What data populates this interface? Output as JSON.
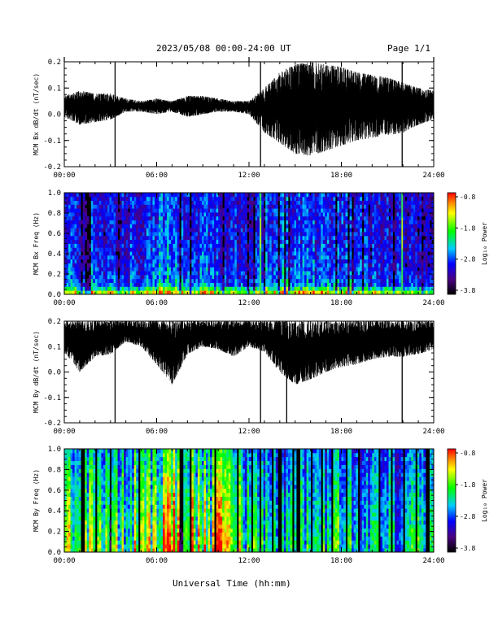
{
  "header": {
    "title": "2023/05/08  00:00-24:00 UT",
    "page": "Page 1/1"
  },
  "xaxis_title": "Universal Time (hh:mm)",
  "chart_data": [
    {
      "type": "line",
      "ylabel": "MCM Bx dB/dt (nT/sec)",
      "xlim": [
        0,
        24
      ],
      "ylim": [
        -0.2,
        0.2
      ],
      "xticks": [
        "00:00",
        "06:00",
        "12:00",
        "18:00",
        "24:00"
      ],
      "yticks": [
        "-0.2",
        "-0.1",
        "0.0",
        "0.1",
        "0.2"
      ],
      "spikes_hours": [
        3.3,
        12.75,
        21.95
      ],
      "envelope": {
        "hours": [
          0,
          1,
          2,
          3,
          4,
          5,
          6,
          7,
          8,
          9,
          10,
          11,
          12,
          13,
          14,
          15,
          16,
          17,
          18,
          19,
          20,
          21,
          22,
          23,
          24
        ],
        "upper": [
          0.07,
          0.09,
          0.08,
          0.08,
          0.06,
          0.05,
          0.06,
          0.05,
          0.07,
          0.07,
          0.06,
          0.05,
          0.05,
          0.1,
          0.16,
          0.19,
          0.2,
          0.19,
          0.18,
          0.16,
          0.15,
          0.14,
          0.12,
          0.1,
          0.09
        ],
        "lower": [
          -0.01,
          -0.04,
          -0.03,
          -0.02,
          0.01,
          0.01,
          0.0,
          0.01,
          -0.01,
          0.0,
          0.01,
          0.01,
          0.0,
          -0.07,
          -0.11,
          -0.15,
          -0.16,
          -0.14,
          -0.12,
          -0.1,
          -0.09,
          -0.08,
          -0.07,
          -0.04,
          -0.02
        ]
      }
    },
    {
      "type": "heatmap",
      "ylabel": "MCM Bx Freq (Hz)",
      "colorbar_label": "Log₁₀ Power",
      "xlim": [
        0,
        24
      ],
      "ylim": [
        0.0,
        1.0
      ],
      "xticks": [
        "00:00",
        "06:00",
        "12:00",
        "18:00",
        "24:00"
      ],
      "yticks": [
        "0.0",
        "0.2",
        "0.4",
        "0.6",
        "0.8",
        "1.0"
      ],
      "clim": [
        -3.8,
        -0.8
      ],
      "cticks": [
        "-0.8",
        "-1.8",
        "-2.8",
        "-3.8"
      ],
      "activity": [
        0.35,
        0.42,
        0.45,
        0.4,
        0.38,
        0.4,
        0.5,
        0.55,
        0.45,
        0.42,
        0.4,
        0.35,
        0.3,
        0.48,
        0.55,
        0.5,
        0.45,
        0.4,
        0.42,
        0.4,
        0.38,
        0.35,
        0.32,
        0.3,
        0.3
      ],
      "spikes_hours": [
        12.75,
        21.95
      ]
    },
    {
      "type": "line",
      "ylabel": "MCM By dB/dt (nT/sec)",
      "xlim": [
        0,
        24
      ],
      "ylim": [
        -0.2,
        0.2
      ],
      "xticks": [
        "00:00",
        "06:00",
        "12:00",
        "18:00",
        "24:00"
      ],
      "yticks": [
        "-0.2",
        "-0.1",
        "0.0",
        "0.1",
        "0.2"
      ],
      "spikes_hours": [
        3.3,
        12.75,
        14.45,
        21.95
      ],
      "envelope": {
        "hours": [
          0,
          1,
          2,
          3,
          4,
          5,
          6,
          7,
          8,
          9,
          10,
          11,
          12,
          13,
          14,
          15,
          16,
          17,
          18,
          19,
          20,
          21,
          22,
          23,
          24
        ],
        "upper": [
          0.2,
          0.2,
          0.2,
          0.2,
          0.2,
          0.2,
          0.2,
          0.2,
          0.2,
          0.2,
          0.2,
          0.2,
          0.2,
          0.2,
          0.2,
          0.2,
          0.2,
          0.2,
          0.2,
          0.2,
          0.2,
          0.2,
          0.2,
          0.2,
          0.2
        ],
        "lower": [
          0.08,
          0.0,
          0.06,
          0.07,
          0.12,
          0.1,
          0.03,
          -0.05,
          0.07,
          0.1,
          0.09,
          0.06,
          0.1,
          0.08,
          0.0,
          -0.05,
          -0.03,
          0.0,
          0.02,
          0.03,
          0.05,
          0.06,
          0.06,
          0.07,
          0.09
        ]
      }
    },
    {
      "type": "heatmap",
      "ylabel": "MCM By Freq (Hz)",
      "colorbar_label": "Log₁₀ Power",
      "xlim": [
        0,
        24
      ],
      "ylim": [
        0.0,
        1.0
      ],
      "xticks": [
        "00:00",
        "06:00",
        "12:00",
        "18:00",
        "24:00"
      ],
      "yticks": [
        "0.0",
        "0.2",
        "0.4",
        "0.6",
        "0.8",
        "1.0"
      ],
      "clim": [
        -3.8,
        -0.8
      ],
      "cticks": [
        "-0.8",
        "-1.8",
        "-2.8",
        "-3.8"
      ],
      "activity": [
        0.55,
        0.6,
        0.65,
        0.62,
        0.6,
        0.65,
        0.72,
        0.75,
        0.7,
        0.68,
        0.7,
        0.62,
        0.55,
        0.5,
        0.45,
        0.5,
        0.48,
        0.45,
        0.5,
        0.45,
        0.45,
        0.42,
        0.45,
        0.45,
        0.42
      ],
      "gaps_hours": [
        1.2,
        2.1,
        3.0,
        4.9,
        7.6,
        8.2,
        9.8,
        11.3,
        12.2,
        12.75,
        13.5,
        14.0,
        14.9,
        15.2,
        16.1,
        16.7,
        17.4,
        18.3,
        19.1,
        20.5,
        21.3,
        22.1,
        22.9,
        23.6
      ]
    }
  ]
}
